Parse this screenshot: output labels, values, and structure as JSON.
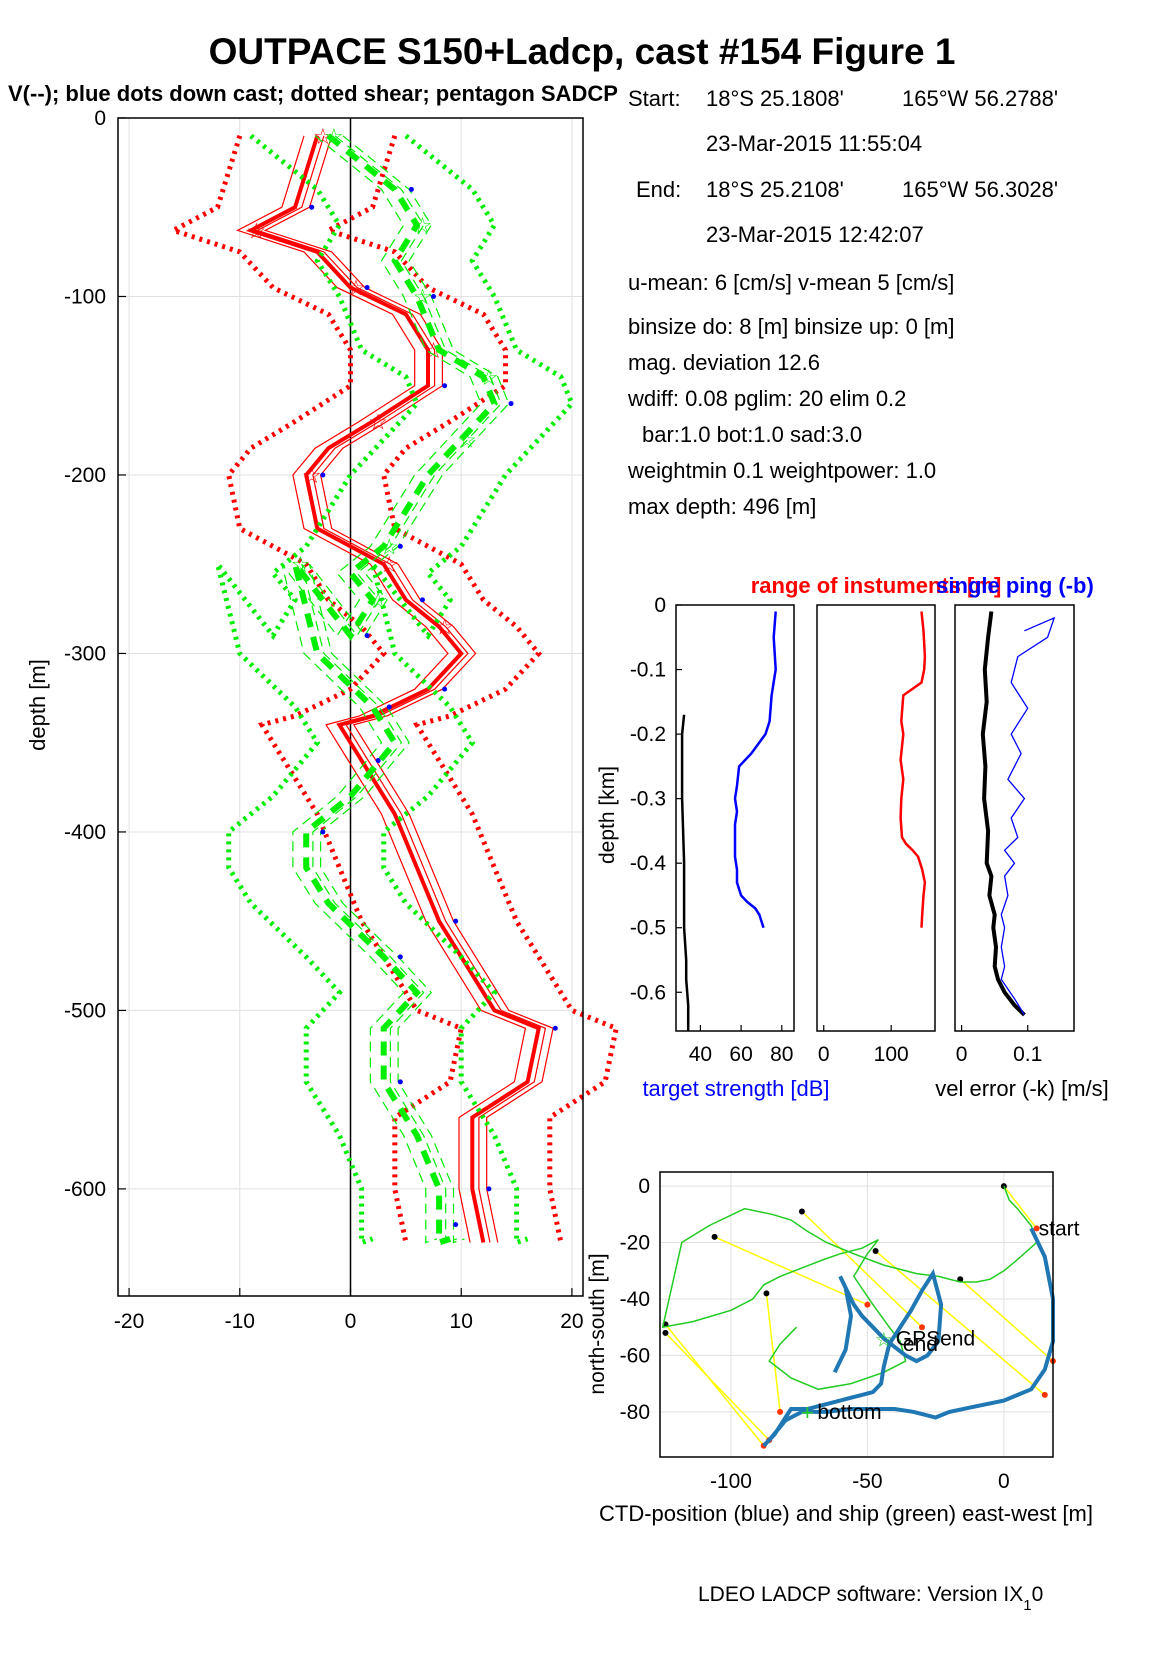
{
  "title": "OUTPACE S150+Ladcp, cast #154  Figure 1",
  "subtitle": "V(--); blue dots down cast; dotted shear; pentagon SADCP",
  "info": {
    "start_label": "Start:",
    "start_lat": "18°S 25.1808'",
    "start_lon": "165°W 56.2788'",
    "start_time": "23-Mar-2015 11:55:04",
    "end_label": "End:",
    "end_lat": "18°S 25.2108'",
    "end_lon": "165°W 56.3028'",
    "end_time": "23-Mar-2015 12:42:07",
    "u_mean": "u-mean:   6 [cm/s]    v-mean   5 [cm/s]",
    "binsize": "binsize do: 8 [m]  binsize up:  0 [m]",
    "mag_dev": "mag. deviation 12.6",
    "wdiff": "wdiff: 0.08  pglim: 20  elim 0.2",
    "bar": "bar:1.0 bot:1.0 sad:3.0",
    "weightmin": "weightmin 0.1  weightpower: 1.0",
    "max_depth": "max depth: 496 [m]"
  },
  "footer": {
    "text": "LDEO LADCP software: Version IX",
    "subscript": "1",
    "suffix": "0"
  },
  "colors": {
    "u_red": "#ff0000",
    "v_green": "#00ee00",
    "blue": "#0000ff",
    "ctd_blue": "#1f77b4",
    "ship_green": "#22cc22",
    "link_yellow": "#ffff00",
    "grid": "#e0e0e0"
  },
  "chart_data": [
    {
      "id": "velocity_profile",
      "type": "line",
      "xlabel": "",
      "ylabel": "depth [m]",
      "xlim": [
        -21,
        21
      ],
      "ylim": [
        -660,
        0
      ],
      "xticks": [
        -20,
        -10,
        0,
        10,
        20
      ],
      "yticks": [
        0,
        -100,
        -200,
        -300,
        -400,
        -500,
        -600
      ],
      "grid": true,
      "series": [
        {
          "component": "u",
          "color": "#ff0000",
          "x": [
            -3,
            -5,
            -9,
            -3,
            0,
            5,
            7,
            7,
            2,
            -2,
            -4,
            -3,
            3,
            5,
            8,
            10,
            7,
            2,
            -1,
            1,
            4,
            6,
            8,
            11,
            13,
            17,
            16,
            11,
            11,
            12
          ],
          "y": [
            -10,
            -50,
            -63,
            -75,
            -95,
            -110,
            -130,
            -150,
            -170,
            -185,
            -200,
            -230,
            -250,
            -270,
            -285,
            -300,
            -320,
            -335,
            -340,
            -360,
            -390,
            -420,
            -450,
            -480,
            -500,
            -510,
            -540,
            -560,
            -600,
            -630
          ]
        },
        {
          "component": "v",
          "color": "#00ee00",
          "x": [
            -2,
            4,
            6,
            4,
            6,
            8,
            12,
            13,
            10,
            7,
            3,
            0,
            2,
            0,
            -5,
            -3,
            2,
            4,
            0,
            -4,
            -4,
            -2,
            3,
            6,
            3,
            3,
            6,
            8,
            8,
            8,
            9
          ],
          "y": [
            -10,
            -40,
            -60,
            -80,
            -100,
            -130,
            -145,
            -160,
            -180,
            -200,
            -240,
            -255,
            -270,
            -290,
            -250,
            -300,
            -330,
            -350,
            -380,
            -400,
            -420,
            -440,
            -470,
            -490,
            -510,
            -540,
            -570,
            -600,
            -620,
            -630,
            -628
          ]
        }
      ]
    },
    {
      "id": "target_strength",
      "type": "line",
      "xlabel": "target strength [dB]",
      "ylabel": "depth [km]",
      "xlim": [
        28,
        86
      ],
      "ylim": [
        -0.66,
        0
      ],
      "xticks": [
        40,
        60,
        80
      ],
      "yticks": [
        0,
        -0.1,
        -0.2,
        -0.3,
        -0.4,
        -0.5,
        -0.6
      ],
      "series": [
        {
          "name": "",
          "color": "#0000ff",
          "x": [
            77,
            76,
            77,
            75,
            74,
            72,
            65,
            59,
            58,
            57,
            58,
            57,
            57,
            57,
            58,
            58,
            60,
            63,
            67,
            69,
            71
          ],
          "y": [
            -0.01,
            -0.05,
            -0.1,
            -0.14,
            -0.18,
            -0.2,
            -0.23,
            -0.25,
            -0.28,
            -0.3,
            -0.32,
            -0.34,
            -0.36,
            -0.39,
            -0.41,
            -0.43,
            -0.45,
            -0.46,
            -0.47,
            -0.48,
            -0.5
          ]
        },
        {
          "name": "",
          "color": "#000000",
          "x": [
            32,
            31,
            31,
            32,
            32,
            33,
            33,
            34,
            34
          ],
          "y": [
            -0.17,
            -0.2,
            -0.3,
            -0.4,
            -0.5,
            -0.55,
            -0.58,
            -0.62,
            -0.66
          ]
        }
      ]
    },
    {
      "id": "range_of_instruments",
      "type": "line",
      "title": "range of instuments [m]",
      "xlabel": "",
      "ylabel": "",
      "xlim": [
        -10,
        165
      ],
      "ylim": [
        -0.66,
        0
      ],
      "xticks": [
        0,
        100
      ],
      "series": [
        {
          "name": "",
          "color": "#ff0000",
          "x": [
            145,
            148,
            150,
            149,
            145,
            118,
            115,
            118,
            114,
            118,
            115,
            114,
            116,
            122,
            132,
            140,
            146,
            150,
            148,
            146,
            145
          ],
          "y": [
            -0.01,
            -0.04,
            -0.08,
            -0.1,
            -0.12,
            -0.14,
            -0.18,
            -0.2,
            -0.24,
            -0.27,
            -0.3,
            -0.33,
            -0.36,
            -0.37,
            -0.38,
            -0.39,
            -0.41,
            -0.43,
            -0.45,
            -0.48,
            -0.5
          ]
        }
      ]
    },
    {
      "id": "vel_error_single_ping",
      "type": "line",
      "title": "single ping (-b)",
      "xlabel": "vel error (-k) [m/s]",
      "ylabel": "",
      "xlim": [
        -0.01,
        0.17
      ],
      "ylim": [
        -0.66,
        0
      ],
      "xticks": [
        0,
        0.1
      ],
      "series": [
        {
          "name": "",
          "color": "#000000",
          "x": [
            0.045,
            0.04,
            0.035,
            0.038,
            0.032,
            0.036,
            0.034,
            0.04,
            0.038,
            0.045,
            0.042,
            0.05,
            0.048,
            0.052,
            0.05,
            0.055,
            0.065,
            0.08,
            0.095
          ],
          "y": [
            -0.01,
            -0.05,
            -0.1,
            -0.15,
            -0.2,
            -0.25,
            -0.3,
            -0.35,
            -0.4,
            -0.42,
            -0.45,
            -0.48,
            -0.5,
            -0.53,
            -0.56,
            -0.58,
            -0.6,
            -0.62,
            -0.635
          ]
        },
        {
          "name": "",
          "color": "#0000ff",
          "x": [
            0.095,
            0.14,
            0.13,
            0.085,
            0.075,
            0.1,
            0.075,
            0.09,
            0.07,
            0.095,
            0.075,
            0.085,
            0.065,
            0.08,
            0.065,
            0.07,
            0.06,
            0.065,
            0.06,
            0.065,
            0.06,
            0.08,
            0.095
          ],
          "y": [
            -0.04,
            -0.02,
            -0.05,
            -0.08,
            -0.12,
            -0.16,
            -0.2,
            -0.23,
            -0.27,
            -0.3,
            -0.33,
            -0.36,
            -0.38,
            -0.4,
            -0.42,
            -0.45,
            -0.48,
            -0.5,
            -0.53,
            -0.56,
            -0.58,
            -0.61,
            -0.635
          ]
        }
      ]
    },
    {
      "id": "position",
      "type": "line",
      "xlabel": "CTD-position (blue) and ship (green) east-west [m]",
      "ylabel": "north-south [m]",
      "xlim": [
        -126,
        18
      ],
      "ylim": [
        -96,
        5
      ],
      "xticks": [
        -100,
        -50,
        0
      ],
      "yticks": [
        0,
        -20,
        -40,
        -60,
        -80
      ],
      "grid": true,
      "annotations": [
        "start",
        "end",
        "GPSend",
        "bottom"
      ],
      "series": [
        {
          "name": "",
          "color": "#1f77b4",
          "x": [
            10,
            15,
            18,
            18,
            15,
            10,
            0,
            -10,
            -20,
            -25,
            -33,
            -40,
            -48,
            -56,
            -65,
            -74,
            -80,
            -86,
            -88,
            -84,
            -80,
            -78,
            -72,
            -68,
            -64,
            -60,
            -56,
            -52,
            -48,
            -45,
            -44,
            -42,
            -38,
            -34,
            -30,
            -26,
            -23,
            -24,
            -28,
            -32,
            -36,
            -40,
            -44,
            -48,
            -52,
            -55,
            -57,
            -60,
            -58,
            -56,
            -58,
            -62
          ],
          "y": [
            -15,
            -25,
            -40,
            -55,
            -65,
            -72,
            -76,
            -78,
            -80,
            -82,
            -80,
            -79,
            -79,
            -79,
            -80,
            -80,
            -83,
            -90,
            -92,
            -88,
            -82,
            -79,
            -79,
            -78,
            -77,
            -76,
            -75,
            -74,
            -73,
            -70,
            -64,
            -56,
            -50,
            -44,
            -37,
            -31,
            -42,
            -55,
            -60,
            -62,
            -60,
            -57,
            -54,
            -50,
            -46,
            -42,
            -38,
            -32,
            -36,
            -46,
            -58,
            -66
          ]
        },
        {
          "name": "",
          "color": "#22cc22",
          "x": [
            0,
            2,
            5,
            10,
            12,
            5,
            0,
            -5,
            -10,
            -16,
            -24,
            -32,
            -44,
            -55,
            -65,
            -72,
            -78,
            -85,
            -95,
            -108,
            -118,
            -125,
            -114,
            -100,
            -92,
            -88,
            -82,
            -74,
            -66,
            -60,
            -52,
            -46,
            -50,
            -55,
            -48,
            -42,
            -38,
            -36,
            -44,
            -56,
            -68,
            -78,
            -86,
            -82,
            -76
          ],
          "y": [
            0,
            -5,
            -8,
            -14,
            -20,
            -26,
            -30,
            -33,
            -34,
            -34,
            -32,
            -31,
            -28,
            -24,
            -20,
            -16,
            -12,
            -10,
            -8,
            -14,
            -20,
            -50,
            -48,
            -44,
            -40,
            -35,
            -32,
            -29,
            -26,
            -24,
            -22,
            -19,
            -24,
            -32,
            -42,
            -50,
            -55,
            -62,
            -66,
            -70,
            -72,
            -68,
            -62,
            -56,
            -50
          ]
        },
        {
          "name": "",
          "color": "#ffff00",
          "x": [
            0,
            12,
            -16,
            18,
            -47,
            15,
            -74,
            -30,
            -106,
            -50,
            -87,
            -82,
            -124,
            -88,
            -124,
            -86
          ],
          "y": [
            0,
            -15,
            -33,
            -62,
            -23,
            -74,
            -9,
            -50,
            -18,
            -42,
            -38,
            -80,
            -49,
            -92,
            -52,
            -90
          ]
        }
      ]
    }
  ]
}
